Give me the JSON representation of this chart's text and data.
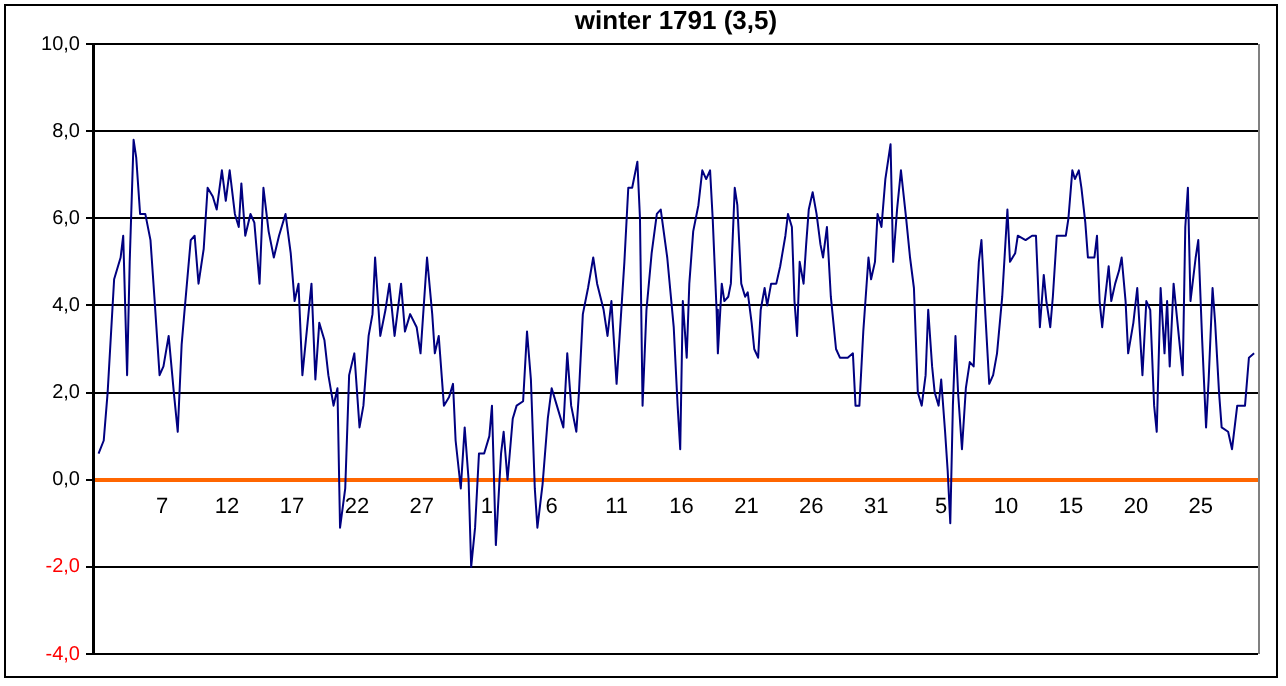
{
  "chart_data": {
    "type": "line",
    "title": "winter 1791 (3,5)",
    "xlim": [
      "1790-12-01T18:00",
      "1791-03-01T09:36"
    ],
    "xticks": [
      {
        "value": "1790-12-07",
        "label": "7"
      },
      {
        "value": "1790-12-12",
        "label": "12"
      },
      {
        "value": "1790-12-17",
        "label": "17"
      },
      {
        "value": "1790-12-22",
        "label": "22"
      },
      {
        "value": "1790-12-27",
        "label": "27"
      },
      {
        "value": "1791-01-01",
        "label": "1"
      },
      {
        "value": "1791-01-06",
        "label": "6"
      },
      {
        "value": "1791-01-11",
        "label": "11"
      },
      {
        "value": "1791-01-16",
        "label": "16"
      },
      {
        "value": "1791-01-21",
        "label": "21"
      },
      {
        "value": "1791-01-26",
        "label": "26"
      },
      {
        "value": "1791-01-31",
        "label": "31"
      },
      {
        "value": "1791-02-05",
        "label": "5"
      },
      {
        "value": "1791-02-10",
        "label": "10"
      },
      {
        "value": "1791-02-15",
        "label": "15"
      },
      {
        "value": "1791-02-20",
        "label": "20"
      },
      {
        "value": "1791-02-25",
        "label": "25"
      }
    ],
    "ylim": [
      -4,
      10
    ],
    "yticks": [
      {
        "value": -4,
        "label": "-4,0"
      },
      {
        "value": -2,
        "label": "-2,0"
      },
      {
        "value": 0,
        "label": "0,0"
      },
      {
        "value": 2,
        "label": "2,0"
      },
      {
        "value": 4,
        "label": "4,0"
      },
      {
        "value": 6,
        "label": "6,0"
      },
      {
        "value": 8,
        "label": "8,0"
      },
      {
        "value": 10,
        "label": "10,0"
      }
    ],
    "grid": "y",
    "legend": false,
    "marker": "none",
    "line_style": "solid",
    "series": [
      {
        "color": "#000080",
        "x": [
          "1790-12-02T02:24",
          "1790-12-02T12:00",
          "1790-12-02T19:12",
          "1790-12-03T07:12",
          "1790-12-03T19:12",
          "1790-12-04T00:00",
          "1790-12-04T07:12",
          "1790-12-04T12:00",
          "1790-12-04T19:12",
          "1790-12-05T00:00",
          "1790-12-05T07:12",
          "1790-12-05T16:48",
          "1790-12-06T02:24",
          "1790-12-06T09:36",
          "1790-12-06T19:12",
          "1790-12-07T02:24",
          "1790-12-07T12:00",
          "1790-12-07T21:36",
          "1790-12-08T04:48",
          "1790-12-08T12:00",
          "1790-12-08T16:48",
          "1790-12-09T04:48",
          "1790-12-09T12:00",
          "1790-12-09T19:12",
          "1790-12-10T04:48",
          "1790-12-10T12:00",
          "1790-12-10T21:36",
          "1790-12-11T04:48",
          "1790-12-11T14:24",
          "1790-12-11T21:36",
          "1790-12-12T04:48",
          "1790-12-12T14:24",
          "1790-12-12T21:36",
          "1790-12-13T02:24",
          "1790-12-13T09:36",
          "1790-12-13T19:12",
          "1790-12-14T02:24",
          "1790-12-14T12:00",
          "1790-12-14T19:12",
          "1790-12-15T04:48",
          "1790-12-15T14:24",
          "1790-12-16T00:00",
          "1790-12-16T12:00",
          "1790-12-16T21:36",
          "1790-12-17T04:48",
          "1790-12-17T12:00",
          "1790-12-17T19:12",
          "1790-12-18T04:48",
          "1790-12-18T12:00",
          "1790-12-18T19:12",
          "1790-12-19T02:24",
          "1790-12-19T12:00",
          "1790-12-19T19:12",
          "1790-12-20T04:48",
          "1790-12-20T12:00",
          "1790-12-20T16:48",
          "1790-12-21T02:24",
          "1790-12-21T09:36",
          "1790-12-21T19:12",
          "1790-12-22T04:48",
          "1790-12-22T12:00",
          "1790-12-22T21:36",
          "1790-12-23T04:48",
          "1790-12-23T09:36",
          "1790-12-23T19:12",
          "1790-12-24T04:48",
          "1790-12-24T12:00",
          "1790-12-24T21:36",
          "1790-12-25T09:36",
          "1790-12-25T16:48",
          "1790-12-26T02:24",
          "1790-12-26T14:24",
          "1790-12-26T21:36",
          "1790-12-27T09:36",
          "1790-12-27T19:12",
          "1790-12-28T00:00",
          "1790-12-28T07:12",
          "1790-12-28T16:48",
          "1790-12-29T02:24",
          "1790-12-29T09:36",
          "1790-12-29T14:24",
          "1790-12-30T00:00",
          "1790-12-30T07:12",
          "1790-12-30T14:24",
          "1790-12-30T19:12",
          "1790-12-31T02:24",
          "1790-12-31T09:36",
          "1790-12-31T19:12",
          "1791-01-01T04:48",
          "1791-01-01T09:36",
          "1791-01-01T16:48",
          "1791-01-02T02:24",
          "1791-01-02T07:12",
          "1791-01-02T14:24",
          "1791-01-03T00:00",
          "1791-01-03T07:12",
          "1791-01-03T19:12",
          "1791-01-04T02:24",
          "1791-01-04T09:36",
          "1791-01-04T16:48",
          "1791-01-04T21:36",
          "1791-01-05T07:12",
          "1791-01-05T16:48",
          "1791-01-06T00:00",
          "1791-01-06T09:36",
          "1791-01-06T21:36",
          "1791-01-07T04:48",
          "1791-01-07T12:00",
          "1791-01-07T21:36",
          "1791-01-08T02:24",
          "1791-01-08T09:36",
          "1791-01-08T19:12",
          "1791-01-09T04:48",
          "1791-01-09T12:00",
          "1791-01-10T00:00",
          "1791-01-10T07:12",
          "1791-01-10T14:24",
          "1791-01-11T00:00",
          "1791-01-11T07:12",
          "1791-01-11T14:24",
          "1791-01-11T21:36",
          "1791-01-12T04:48",
          "1791-01-12T14:24",
          "1791-01-12T19:12",
          "1791-01-13T00:00",
          "1791-01-13T07:12",
          "1791-01-13T16:48",
          "1791-01-14T02:24",
          "1791-01-14T09:36",
          "1791-01-14T21:36",
          "1791-01-15T09:36",
          "1791-01-15T16:48",
          "1791-01-15T21:36",
          "1791-01-16T02:24",
          "1791-01-16T09:36",
          "1791-01-16T14:24",
          "1791-01-16T21:36",
          "1791-01-17T07:12",
          "1791-01-17T14:24",
          "1791-01-17T21:36",
          "1791-01-18T04:48",
          "1791-01-18T09:36",
          "1791-01-18T16:48",
          "1791-01-18T19:12",
          "1791-01-19T02:24",
          "1791-01-19T07:12",
          "1791-01-19T14:24",
          "1791-01-19T19:12",
          "1791-01-20T02:24",
          "1791-01-20T07:12",
          "1791-01-20T14:24",
          "1791-01-20T21:36",
          "1791-01-21T02:24",
          "1791-01-21T09:36",
          "1791-01-21T14:24",
          "1791-01-21T21:36",
          "1791-01-22T02:24",
          "1791-01-22T09:36",
          "1791-01-22T14:24",
          "1791-01-22T21:36",
          "1791-01-23T07:12",
          "1791-01-23T14:24",
          "1791-01-24T00:00",
          "1791-01-24T04:48",
          "1791-01-24T12:00",
          "1791-01-24T16:48",
          "1791-01-24T21:36",
          "1791-01-25T02:24",
          "1791-01-25T09:36",
          "1791-01-25T14:24",
          "1791-01-25T19:12",
          "1791-01-26T02:24",
          "1791-01-26T09:36",
          "1791-01-26T16:48",
          "1791-01-26T21:36",
          "1791-01-27T04:48",
          "1791-01-27T12:00",
          "1791-01-27T21:36",
          "1791-01-28T04:48",
          "1791-01-28T19:12",
          "1791-01-29T04:48",
          "1791-01-29T09:36",
          "1791-01-29T16:48",
          "1791-01-30T00:00",
          "1791-01-30T09:36",
          "1791-01-30T14:24",
          "1791-01-30T21:36",
          "1791-01-31T02:24",
          "1791-01-31T09:36",
          "1791-01-31T16:48",
          "1791-01-31T21:36",
          "1791-02-01T02:24",
          "1791-02-01T07:12",
          "1791-02-01T14:24",
          "1791-02-01T21:36",
          "1791-02-02T07:12",
          "1791-02-02T14:24",
          "1791-02-02T21:36",
          "1791-02-03T04:48",
          "1791-02-03T12:00",
          "1791-02-03T19:12",
          "1791-02-04T00:00",
          "1791-02-04T07:12",
          "1791-02-04T12:00",
          "1791-02-04T19:12",
          "1791-02-05T00:00",
          "1791-02-05T07:12",
          "1791-02-05T12:00",
          "1791-02-05T16:48",
          "1791-02-05T21:36",
          "1791-02-06T02:24",
          "1791-02-06T07:12",
          "1791-02-06T14:24",
          "1791-02-06T21:36",
          "1791-02-07T04:48",
          "1791-02-07T12:00",
          "1791-02-07T16:48",
          "1791-02-07T21:36",
          "1791-02-08T02:24",
          "1791-02-08T09:36",
          "1791-02-08T16:48",
          "1791-02-09T00:00",
          "1791-02-09T07:12",
          "1791-02-09T16:48",
          "1791-02-09T21:36",
          "1791-02-10T02:24",
          "1791-02-10T07:12",
          "1791-02-10T16:48",
          "1791-02-10T21:36",
          "1791-02-11T12:00",
          "1791-02-12T00:00",
          "1791-02-12T07:12",
          "1791-02-12T14:24",
          "1791-02-12T21:36",
          "1791-02-13T02:24",
          "1791-02-13T09:36",
          "1791-02-13T14:24",
          "1791-02-13T21:36",
          "1791-02-14T14:24",
          "1791-02-14T19:12",
          "1791-02-15T02:24",
          "1791-02-15T07:12",
          "1791-02-15T14:24",
          "1791-02-15T19:12",
          "1791-02-16T02:24",
          "1791-02-16T07:12",
          "1791-02-16T19:12",
          "1791-02-17T00:00",
          "1791-02-17T04:48",
          "1791-02-17T09:36",
          "1791-02-17T14:24",
          "1791-02-17T21:36",
          "1791-02-18T02:24",
          "1791-02-18T09:36",
          "1791-02-18T16:48",
          "1791-02-18T21:36",
          "1791-02-19T04:48",
          "1791-02-19T09:36",
          "1791-02-19T19:12",
          "1791-02-20T02:24",
          "1791-02-20T12:00",
          "1791-02-20T19:12",
          "1791-02-21T02:24",
          "1791-02-21T09:36",
          "1791-02-21T14:24",
          "1791-02-21T21:36",
          "1791-02-22T04:48",
          "1791-02-22T09:36",
          "1791-02-22T14:24",
          "1791-02-22T21:36",
          "1791-02-23T04:48",
          "1791-02-23T14:24",
          "1791-02-23T19:12",
          "1791-02-24T00:00",
          "1791-02-24T04:48",
          "1791-02-24T14:24",
          "1791-02-24T19:12",
          "1791-02-25T02:24",
          "1791-02-25T09:36",
          "1791-02-25T14:24",
          "1791-02-25T21:36",
          "1791-02-26T02:24",
          "1791-02-26T09:36",
          "1791-02-26T14:24",
          "1791-02-27T02:24",
          "1791-02-27T09:36",
          "1791-02-27T19:12",
          "1791-02-28T09:36",
          "1791-02-28T16:48",
          "1791-03-01T02:24"
        ],
        "values": [
          0.6,
          0.9,
          2.0,
          4.6,
          5.1,
          5.6,
          2.4,
          5.0,
          7.8,
          7.4,
          6.1,
          6.1,
          5.5,
          4.2,
          2.4,
          2.6,
          3.3,
          2.0,
          1.1,
          3.1,
          3.8,
          5.5,
          5.6,
          4.5,
          5.3,
          6.7,
          6.5,
          6.2,
          7.1,
          6.4,
          7.1,
          6.1,
          5.8,
          6.8,
          5.6,
          6.1,
          5.9,
          4.5,
          6.7,
          5.7,
          5.1,
          5.6,
          6.1,
          5.2,
          4.1,
          4.5,
          2.4,
          3.6,
          4.5,
          2.3,
          3.6,
          3.2,
          2.4,
          1.7,
          2.1,
          -1.1,
          -0.2,
          2.4,
          2.9,
          1.2,
          1.7,
          3.3,
          3.8,
          5.1,
          3.3,
          3.9,
          4.5,
          3.3,
          4.5,
          3.4,
          3.8,
          3.5,
          2.9,
          5.1,
          3.8,
          2.9,
          3.3,
          1.7,
          1.9,
          2.2,
          0.9,
          -0.2,
          1.2,
          0.0,
          -2.0,
          -1.1,
          0.6,
          0.6,
          1.0,
          1.7,
          -1.5,
          0.6,
          1.1,
          0.0,
          1.4,
          1.7,
          1.8,
          3.4,
          2.3,
          -0.2,
          -1.1,
          -0.1,
          1.4,
          2.1,
          1.7,
          1.2,
          2.9,
          1.7,
          1.1,
          2.0,
          3.8,
          4.4,
          5.1,
          4.5,
          3.9,
          3.3,
          4.1,
          2.2,
          3.6,
          5.0,
          6.7,
          6.7,
          7.3,
          6.0,
          1.7,
          3.9,
          5.2,
          6.1,
          6.2,
          5.1,
          3.5,
          1.7,
          0.7,
          4.1,
          2.8,
          4.5,
          5.7,
          6.3,
          7.1,
          6.9,
          7.1,
          6.0,
          3.9,
          2.9,
          4.5,
          4.1,
          4.2,
          4.5,
          6.7,
          6.3,
          4.5,
          4.2,
          4.3,
          3.6,
          3.0,
          2.8,
          3.9,
          4.4,
          4.0,
          4.5,
          4.5,
          4.9,
          5.6,
          6.1,
          5.8,
          4.1,
          3.3,
          5.0,
          4.5,
          5.4,
          6.2,
          6.6,
          6.1,
          5.4,
          5.1,
          5.8,
          4.2,
          3.0,
          2.8,
          2.8,
          2.9,
          1.7,
          1.7,
          3.4,
          5.1,
          4.6,
          5.0,
          6.1,
          5.8,
          6.9,
          7.3,
          7.7,
          5.0,
          6.2,
          7.1,
          6.0,
          5.1,
          4.4,
          2.0,
          1.7,
          2.4,
          3.9,
          2.6,
          2.0,
          1.7,
          2.3,
          1.1,
          0.2,
          -1.0,
          1.7,
          3.3,
          2.0,
          0.7,
          2.1,
          2.7,
          2.6,
          3.9,
          5.0,
          5.5,
          3.8,
          2.2,
          2.4,
          2.9,
          4.2,
          5.2,
          6.2,
          5.0,
          5.2,
          5.6,
          5.5,
          5.6,
          5.6,
          3.5,
          4.7,
          4.1,
          3.5,
          4.2,
          5.6,
          5.6,
          6.0,
          7.1,
          6.9,
          7.1,
          6.7,
          5.9,
          5.1,
          5.1,
          5.6,
          4.1,
          3.5,
          4.1,
          4.9,
          4.1,
          4.5,
          4.8,
          5.1,
          4.1,
          2.9,
          3.6,
          4.4,
          2.4,
          4.1,
          3.9,
          1.7,
          1.1,
          4.4,
          2.9,
          4.1,
          2.6,
          4.5,
          3.6,
          2.4,
          5.8,
          6.7,
          4.1,
          5.1,
          5.5,
          3.2,
          1.2,
          2.3,
          4.4,
          3.6,
          2.0,
          1.2,
          1.1,
          0.7,
          1.7,
          1.7,
          2.8,
          2.9
        ]
      }
    ]
  }
}
